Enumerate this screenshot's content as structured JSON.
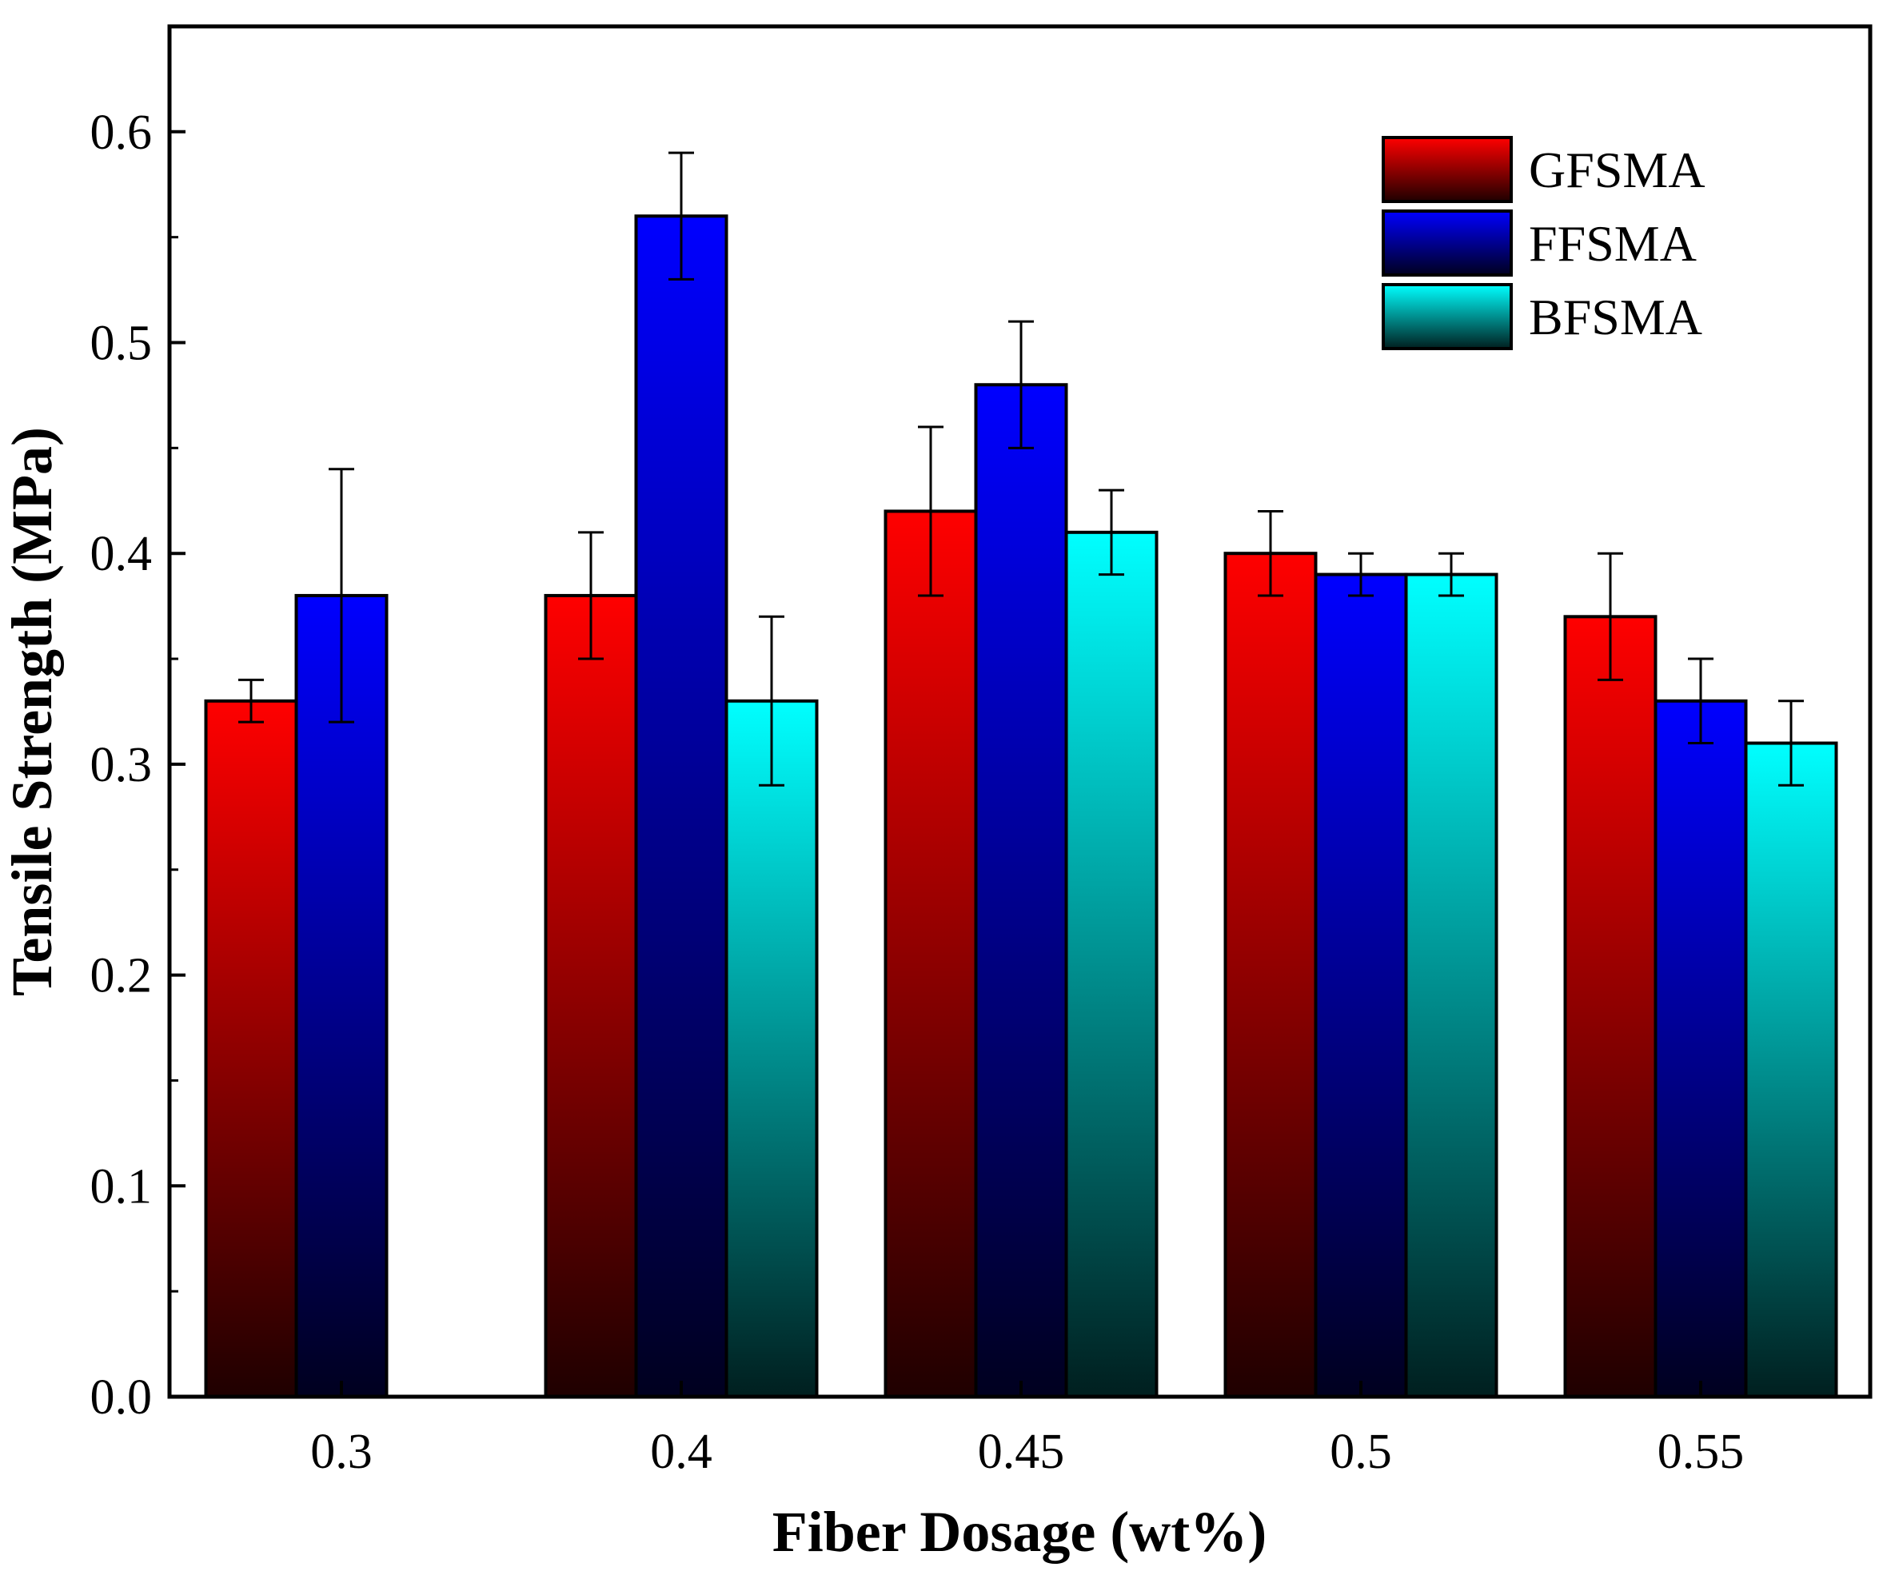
{
  "chart_data": {
    "type": "bar",
    "xlabel": "Fiber Dosage (wt%)",
    "ylabel": "Tensile Strength (MPa)",
    "categories": [
      "0.3",
      "0.4",
      "0.45",
      "0.5",
      "0.55"
    ],
    "ylim": [
      0,
      0.65
    ],
    "yticks": [
      "0.0",
      "0.1",
      "0.2",
      "0.3",
      "0.4",
      "0.5",
      "0.6"
    ],
    "grid": false,
    "legend_position": "top-right",
    "series": [
      {
        "name": "GFSMA",
        "color": "#ff0000",
        "values": [
          0.33,
          0.38,
          0.42,
          0.4,
          0.37
        ],
        "errors": [
          0.01,
          0.03,
          0.04,
          0.02,
          0.03
        ]
      },
      {
        "name": "FFSMA",
        "color": "#0000ff",
        "values": [
          0.38,
          0.56,
          0.48,
          0.39,
          0.33
        ],
        "errors": [
          0.06,
          0.03,
          0.03,
          0.01,
          0.02
        ]
      },
      {
        "name": "BFSMA",
        "color": "#00ffff",
        "values": [
          null,
          0.33,
          0.41,
          0.39,
          0.31
        ],
        "errors": [
          null,
          0.04,
          0.02,
          0.01,
          0.02
        ]
      }
    ]
  }
}
